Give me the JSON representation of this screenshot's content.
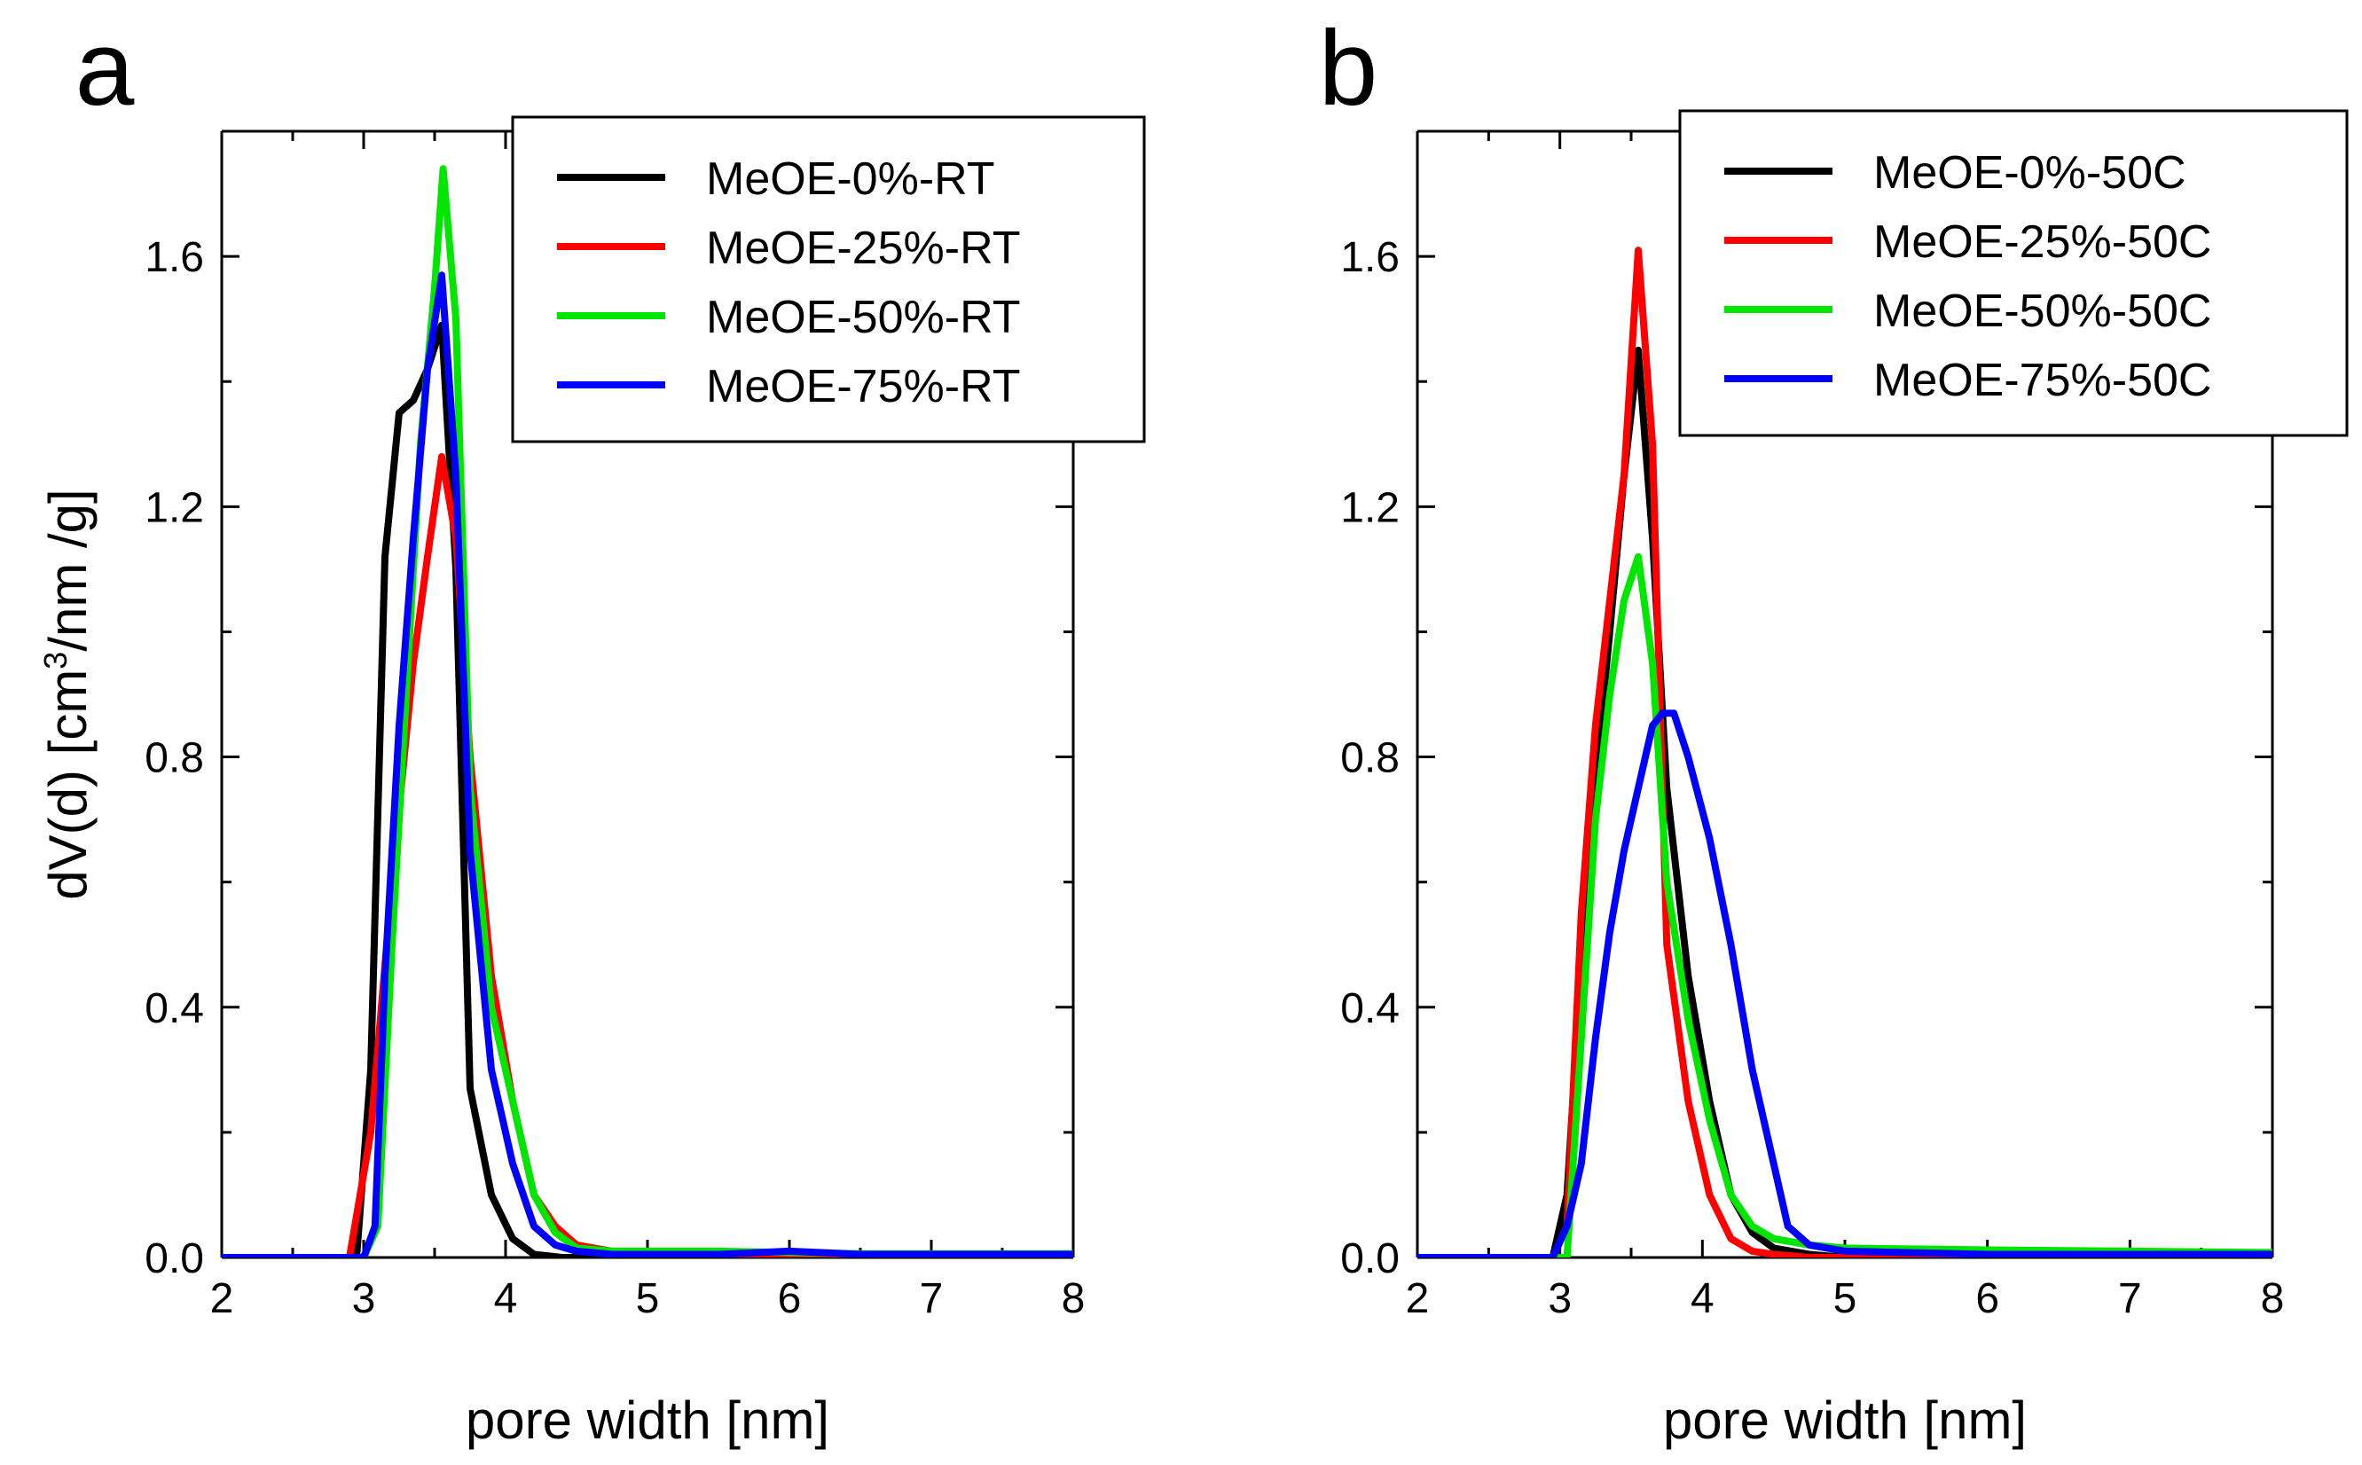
{
  "chart_data": [
    {
      "type": "line",
      "panel_label": "a",
      "xlabel": "pore width [nm]",
      "ylabel": "dV(d) [cm3/nm /g]",
      "ylabel_parts": {
        "before": "dV(d) [cm",
        "sup": "3",
        "after": "/nm /g]"
      },
      "xlim": [
        2,
        8
      ],
      "ylim": [
        0,
        1.8
      ],
      "xticks": [
        "2",
        "3",
        "4",
        "5",
        "6",
        "7",
        "8"
      ],
      "yticks": [
        "0.0",
        "0.4",
        "0.8",
        "1.2",
        "1.6"
      ],
      "legend_position": "top-right",
      "series": [
        {
          "name": "MeOE-0%-RT",
          "color": "#000000",
          "x": [
            2,
            2.5,
            2.95,
            3.05,
            3.15,
            3.25,
            3.35,
            3.45,
            3.55,
            3.65,
            3.75,
            3.9,
            4.05,
            4.2,
            4.4,
            5,
            6,
            7,
            8
          ],
          "y": [
            0,
            0,
            0,
            0.3,
            1.12,
            1.35,
            1.37,
            1.42,
            1.49,
            1.1,
            0.27,
            0.1,
            0.03,
            0.005,
            0,
            0,
            0.005,
            0,
            0
          ]
        },
        {
          "name": "MeOE-25%-RT",
          "color": "#ff0000",
          "x": [
            2,
            2.5,
            2.9,
            3.05,
            3.2,
            3.35,
            3.45,
            3.55,
            3.65,
            3.75,
            3.9,
            4.05,
            4.2,
            4.35,
            4.5,
            4.75,
            5,
            5.5,
            6,
            6.5,
            7,
            8
          ],
          "y": [
            0,
            0,
            0,
            0.2,
            0.6,
            0.95,
            1.12,
            1.28,
            1.15,
            0.8,
            0.45,
            0.25,
            0.1,
            0.05,
            0.02,
            0.01,
            0.005,
            0.005,
            0.005,
            0.003,
            0.003,
            0.003
          ]
        },
        {
          "name": "MeOE-50%-RT",
          "color": "#00e600",
          "x": [
            2,
            2.5,
            3.0,
            3.1,
            3.2,
            3.3,
            3.4,
            3.5,
            3.56,
            3.65,
            3.75,
            3.9,
            4.05,
            4.2,
            4.35,
            4.5,
            4.75,
            5,
            5.5,
            6,
            6.5,
            7,
            8
          ],
          "y": [
            0,
            0,
            0,
            0.05,
            0.5,
            0.9,
            1.3,
            1.55,
            1.74,
            1.5,
            0.75,
            0.4,
            0.25,
            0.1,
            0.04,
            0.015,
            0.01,
            0.01,
            0.01,
            0.008,
            0.006,
            0.006,
            0.006
          ]
        },
        {
          "name": "MeOE-75%-RT",
          "color": "#0000ff",
          "x": [
            2,
            2.5,
            3.0,
            3.08,
            3.15,
            3.25,
            3.35,
            3.45,
            3.55,
            3.65,
            3.75,
            3.9,
            4.05,
            4.2,
            4.35,
            4.5,
            4.75,
            5,
            5.5,
            6,
            6.5,
            7,
            8
          ],
          "y": [
            0,
            0,
            0,
            0.05,
            0.45,
            0.85,
            1.15,
            1.42,
            1.57,
            1.25,
            0.65,
            0.3,
            0.15,
            0.05,
            0.02,
            0.01,
            0.005,
            0.005,
            0.005,
            0.01,
            0.005,
            0.005,
            0.005
          ]
        }
      ]
    },
    {
      "type": "line",
      "panel_label": "b",
      "xlabel": "pore width [nm]",
      "ylabel": "",
      "xlim": [
        2,
        8
      ],
      "ylim": [
        0,
        1.8
      ],
      "xticks": [
        "2",
        "3",
        "4",
        "5",
        "6",
        "7",
        "8"
      ],
      "yticks": [
        "0.0",
        "0.4",
        "0.8",
        "1.2",
        "1.6"
      ],
      "legend_position": "top-right",
      "series": [
        {
          "name": "MeOE-0%-50C",
          "color": "#000000",
          "x": [
            2,
            2.5,
            2.95,
            3.05,
            3.2,
            3.35,
            3.45,
            3.55,
            3.65,
            3.75,
            3.9,
            4.05,
            4.2,
            4.35,
            4.5,
            4.75,
            5,
            6,
            7,
            8
          ],
          "y": [
            0,
            0,
            0,
            0.1,
            0.65,
            1.0,
            1.25,
            1.45,
            1.15,
            0.75,
            0.45,
            0.25,
            0.1,
            0.04,
            0.015,
            0.005,
            0,
            0,
            0,
            0
          ]
        },
        {
          "name": "MeOE-25%-50C",
          "color": "#ff0000",
          "x": [
            2,
            2.5,
            2.95,
            3.05,
            3.15,
            3.25,
            3.35,
            3.45,
            3.55,
            3.65,
            3.75,
            3.9,
            4.05,
            4.2,
            4.35,
            4.5,
            4.75,
            5,
            6,
            7,
            8
          ],
          "y": [
            0,
            0,
            0,
            0.05,
            0.55,
            0.85,
            1.05,
            1.25,
            1.61,
            1.3,
            0.5,
            0.25,
            0.1,
            0.03,
            0.01,
            0.005,
            0,
            0,
            0,
            0,
            0
          ]
        },
        {
          "name": "MeOE-50%-50C",
          "color": "#00e600",
          "x": [
            2,
            2.5,
            3.0,
            3.05,
            3.15,
            3.25,
            3.35,
            3.45,
            3.55,
            3.65,
            3.75,
            3.9,
            4.05,
            4.2,
            4.35,
            4.5,
            4.75,
            5,
            6,
            7,
            8
          ],
          "y": [
            0,
            0,
            0,
            0,
            0.35,
            0.7,
            0.9,
            1.05,
            1.12,
            0.95,
            0.6,
            0.38,
            0.22,
            0.1,
            0.05,
            0.03,
            0.02,
            0.015,
            0.012,
            0.01,
            0.008
          ]
        },
        {
          "name": "MeOE-75%-50C",
          "color": "#0000ff",
          "x": [
            2,
            2.5,
            2.95,
            3.05,
            3.15,
            3.25,
            3.35,
            3.45,
            3.55,
            3.65,
            3.72,
            3.8,
            3.9,
            4.05,
            4.2,
            4.35,
            4.5,
            4.6,
            4.75,
            5,
            6,
            7,
            8
          ],
          "y": [
            0,
            0,
            0,
            0.05,
            0.15,
            0.35,
            0.52,
            0.65,
            0.75,
            0.85,
            0.87,
            0.87,
            0.8,
            0.67,
            0.5,
            0.3,
            0.15,
            0.05,
            0.02,
            0.01,
            0.005,
            0.005,
            0.005
          ]
        }
      ]
    }
  ]
}
